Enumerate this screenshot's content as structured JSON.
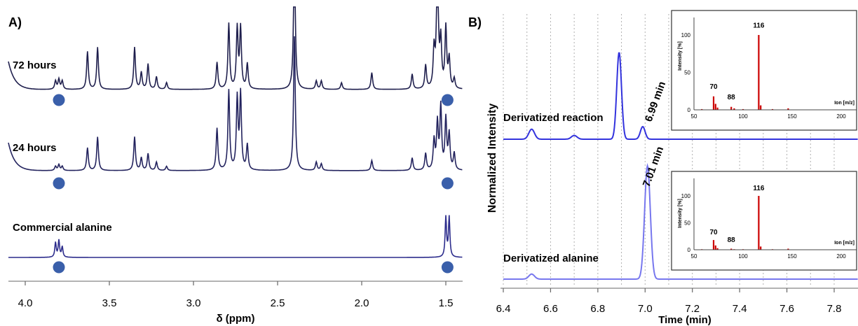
{
  "panel_a": {
    "label": "A)",
    "xlabel": "δ (ppm)",
    "ticks": [
      "4.0",
      "3.5",
      "3.0",
      "2.5",
      "2.0",
      "1.5"
    ],
    "traces": [
      {
        "name": "72 hours",
        "color": "#1f1f4d"
      },
      {
        "name": "24 hours",
        "color": "#23235e"
      },
      {
        "name": "Commercial alanine",
        "color": "#2c2c8c"
      }
    ],
    "marker_color": "#3a5faa"
  },
  "panel_b": {
    "label": "B)",
    "xlabel": "Time (min)",
    "ylabel": "Normalized Intensity",
    "ticks": [
      "6.4",
      "6.6",
      "6.8",
      "7.0",
      "7.2",
      "7.4",
      "7.6",
      "7.8"
    ],
    "traces": [
      {
        "name": "Derivatized reaction",
        "color": "#3333dd",
        "peak_label": "6.99 min"
      },
      {
        "name": "Derivatized alanine",
        "color": "#7777ee",
        "peak_label": "7.01 min"
      }
    ],
    "insets": [
      {
        "ylabel": "Intensity [%]",
        "xlabel": "Ion [m/z]",
        "yticks": [
          "100",
          "50",
          "0"
        ],
        "xticks": [
          "50",
          "100",
          "150",
          "200"
        ],
        "peak_labels": [
          "116",
          "70",
          "88"
        ]
      },
      {
        "ylabel": "Intensity [%]",
        "xlabel": "Ion [m/z]",
        "yticks": [
          "100",
          "50",
          "0"
        ],
        "xticks": [
          "50",
          "100",
          "150",
          "200"
        ],
        "peak_labels": [
          "116",
          "70",
          "88"
        ]
      }
    ],
    "inset_color": "#cc0000"
  },
  "chart_data": [
    {
      "type": "line",
      "panel": "A)",
      "xlabel": "δ (ppm)",
      "xlim": [
        4.1,
        1.4
      ],
      "x_reversed": true,
      "xticks": [
        4.0,
        3.5,
        3.0,
        2.5,
        2.0,
        1.5
      ],
      "series": [
        {
          "name": "72 hours",
          "peaks_ppm": [
            3.82,
            3.8,
            3.78,
            3.63,
            3.57,
            3.35,
            3.31,
            3.27,
            3.22,
            3.16,
            2.86,
            2.79,
            2.74,
            2.72,
            2.68,
            2.4,
            2.27,
            2.24,
            2.12,
            1.94,
            1.7,
            1.62,
            1.57,
            1.55,
            1.53,
            1.5,
            1.48,
            1.45
          ]
        },
        {
          "name": "24 hours",
          "peaks_ppm": [
            3.82,
            3.8,
            3.78,
            3.63,
            3.57,
            3.35,
            3.31,
            3.27,
            3.22,
            3.16,
            2.86,
            2.79,
            2.74,
            2.72,
            2.68,
            2.4,
            2.27,
            2.24,
            1.94,
            1.7,
            1.62,
            1.57,
            1.55,
            1.53,
            1.5,
            1.48,
            1.45
          ]
        },
        {
          "name": "Commercial alanine",
          "peaks_ppm": [
            3.82,
            3.8,
            3.78,
            1.5,
            1.48
          ]
        }
      ],
      "alanine_markers_ppm": [
        3.8,
        1.49
      ]
    },
    {
      "type": "line",
      "panel": "B)",
      "xlabel": "Time (min)",
      "ylabel": "Normalized Intensity",
      "xlim": [
        6.4,
        7.9
      ],
      "xticks": [
        6.4,
        6.6,
        6.8,
        7.0,
        7.2,
        7.4,
        7.6,
        7.8
      ],
      "grid": true,
      "series": [
        {
          "name": "Derivatized reaction",
          "peaks": [
            {
              "x": 6.52,
              "y": 0.08
            },
            {
              "x": 6.7,
              "y": 0.03
            },
            {
              "x": 6.89,
              "y": 0.69
            },
            {
              "x": 6.99,
              "y": 0.1
            }
          ]
        },
        {
          "name": "Derivatized alanine",
          "peaks": [
            {
              "x": 6.52,
              "y": 0.04
            },
            {
              "x": 7.01,
              "y": 0.9
            }
          ]
        }
      ],
      "annotations": [
        "6.99 min",
        "7.01 min"
      ]
    },
    {
      "type": "bar",
      "panel": "B) inset (Derivatized reaction)",
      "xlabel": "Ion [m/z]",
      "ylabel": "Intensity [%]",
      "xlim": [
        50,
        200
      ],
      "ylim": [
        0,
        120
      ],
      "x": [
        58,
        70,
        72,
        74,
        88,
        91,
        100,
        116,
        118,
        130,
        146
      ],
      "values": [
        1,
        18,
        8,
        3,
        4,
        2,
        1,
        100,
        6,
        1,
        2
      ]
    },
    {
      "type": "bar",
      "panel": "B) inset (Derivatized alanine)",
      "xlabel": "Ion [m/z]",
      "ylabel": "Intensity [%]",
      "xlim": [
        50,
        200
      ],
      "ylim": [
        0,
        120
      ],
      "x": [
        58,
        70,
        72,
        74,
        88,
        91,
        100,
        116,
        118,
        130,
        146
      ],
      "values": [
        1,
        18,
        8,
        3,
        2,
        1,
        1,
        100,
        6,
        1,
        2
      ]
    }
  ]
}
